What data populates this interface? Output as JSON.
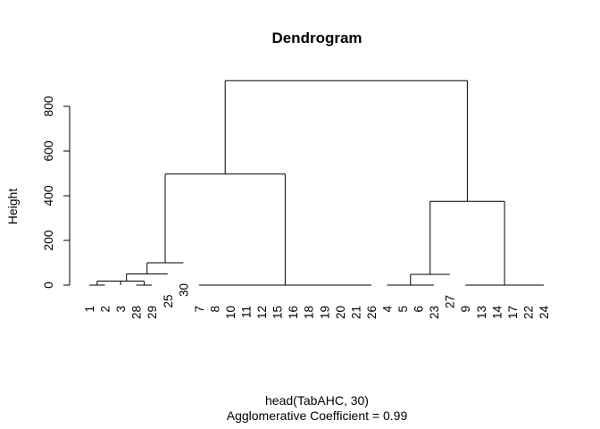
{
  "chart_data": {
    "type": "dendrogram",
    "title": "Dendrogram",
    "ylabel": "Height",
    "xlabel": "head(TabAHC, 30)",
    "subtitle": "Agglomerative Coefficient =  0.99",
    "ylim": [
      0,
      930
    ],
    "yticks": [
      0,
      200,
      400,
      600,
      800
    ],
    "grid": false,
    "leaves": [
      {
        "label": "1",
        "height": 0
      },
      {
        "label": "2",
        "height": 0
      },
      {
        "label": "3",
        "height": 0
      },
      {
        "label": "28",
        "height": 0
      },
      {
        "label": "29",
        "height": 0
      },
      {
        "label": "25",
        "height": 50
      },
      {
        "label": "30",
        "height": 100
      },
      {
        "label": "7",
        "height": 0
      },
      {
        "label": "8",
        "height": 0
      },
      {
        "label": "10",
        "height": 0
      },
      {
        "label": "11",
        "height": 0
      },
      {
        "label": "12",
        "height": 0
      },
      {
        "label": "15",
        "height": 0
      },
      {
        "label": "16",
        "height": 0
      },
      {
        "label": "18",
        "height": 0
      },
      {
        "label": "19",
        "height": 0
      },
      {
        "label": "20",
        "height": 0
      },
      {
        "label": "21",
        "height": 0
      },
      {
        "label": "26",
        "height": 0
      },
      {
        "label": "4",
        "height": 0
      },
      {
        "label": "5",
        "height": 0
      },
      {
        "label": "6",
        "height": 0
      },
      {
        "label": "23",
        "height": 0
      },
      {
        "label": "27",
        "height": 48
      },
      {
        "label": "9",
        "height": 0
      },
      {
        "label": "13",
        "height": 0
      },
      {
        "label": "14",
        "height": 0
      },
      {
        "label": "17",
        "height": 0
      },
      {
        "label": "22",
        "height": 0
      },
      {
        "label": "24",
        "height": 0
      }
    ],
    "merges": [
      {
        "height": 0,
        "leaves": [
          0,
          1
        ]
      },
      {
        "height": 0,
        "leaves": [
          3,
          4
        ]
      },
      {
        "height": 0,
        "leaves": [
          7,
          8,
          9,
          10,
          11,
          12,
          13,
          14,
          15,
          16,
          17,
          18
        ]
      },
      {
        "height": 0,
        "leaves": [
          19,
          20,
          21,
          22
        ]
      },
      {
        "height": 0,
        "leaves": [
          24,
          25,
          26,
          27,
          28,
          29
        ]
      },
      {
        "height": 18,
        "children": [
          "m0",
          "leaf2"
        ]
      },
      {
        "height": 18,
        "children": [
          "m5",
          "m1"
        ]
      },
      {
        "height": 50,
        "children": [
          "m6",
          "leaf5"
        ]
      },
      {
        "height": 100,
        "children": [
          "m7",
          "leaf6"
        ]
      },
      {
        "height": 497,
        "children": [
          "m8",
          "m2"
        ]
      },
      {
        "height": 48,
        "children": [
          "m3",
          "leaf23"
        ]
      },
      {
        "height": 375,
        "children": [
          "m10",
          "m4"
        ]
      },
      {
        "height": 915,
        "children": [
          "m9",
          "m11"
        ]
      }
    ]
  }
}
